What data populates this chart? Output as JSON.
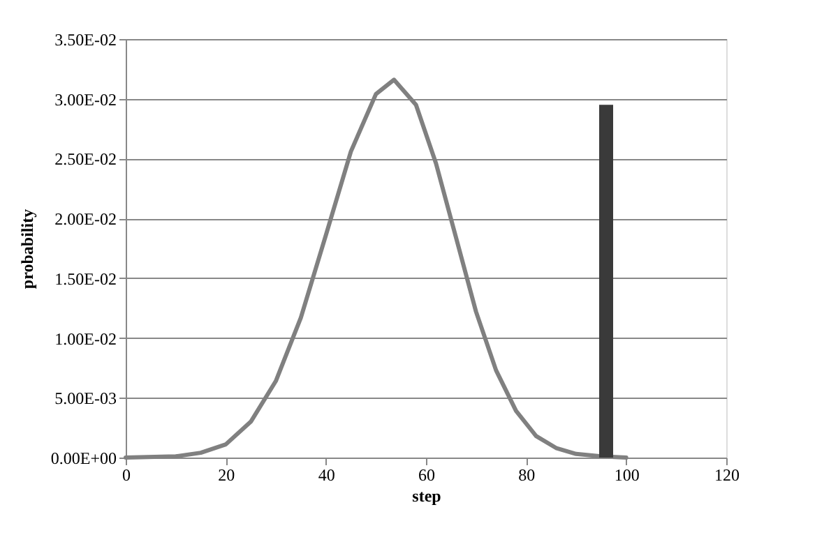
{
  "chart_data": {
    "type": "line",
    "xlabel": "step",
    "ylabel": "probability",
    "xlim": [
      0,
      120
    ],
    "xticks": [
      0,
      20,
      40,
      60,
      80,
      100,
      120
    ],
    "ylim": [
      0,
      0.035
    ],
    "yticks": [
      {
        "value": 0,
        "label": "0.00E+00"
      },
      {
        "value": 0.005,
        "label": "5.00E-03"
      },
      {
        "value": 0.01,
        "label": "1.00E-02"
      },
      {
        "value": 0.015,
        "label": "1.50E-02"
      },
      {
        "value": 0.02,
        "label": "2.00E-02"
      },
      {
        "value": 0.025,
        "label": "2.50E-02"
      },
      {
        "value": 0.03,
        "label": "3.00E-02"
      },
      {
        "value": 0.035,
        "label": "3.50E-02"
      }
    ],
    "grid": "y",
    "marker": "none",
    "line_style": "solid",
    "series": [
      {
        "color": "#808080",
        "x": [
          0,
          10,
          15,
          20,
          25,
          30,
          35,
          40,
          45,
          50,
          53.6,
          58,
          62,
          66,
          70,
          74,
          78,
          82,
          86,
          90,
          95,
          100
        ],
        "values": [
          0,
          0.0001,
          0.0004,
          0.0011,
          0.003,
          0.0064,
          0.0117,
          0.0186,
          0.0256,
          0.0304,
          0.0316,
          0.0295,
          0.0246,
          0.0184,
          0.0122,
          0.0073,
          0.0039,
          0.0018,
          0.0008,
          0.0003,
          0.0001,
          0
        ]
      },
      {
        "type": "bar",
        "color": "#3a3a3a",
        "x": [
          96
        ],
        "values": [
          0.0295
        ]
      }
    ]
  }
}
